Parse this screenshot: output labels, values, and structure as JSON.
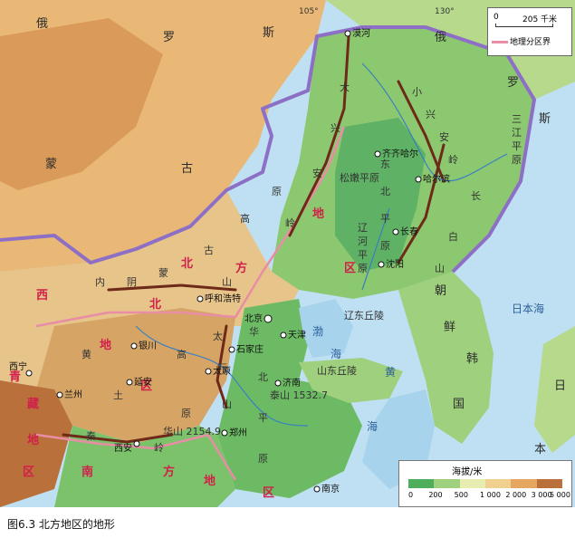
{
  "caption": "图6.3  北方地区的地形",
  "legend": {
    "scale_zero": "0",
    "scale_label": "205 千米",
    "boundary_label": "地理分区界",
    "boundary_color": "#e98ca6",
    "elevation_title": "海拔/米",
    "elevation_ticks": [
      "0",
      "200",
      "500",
      "1 000",
      "2 000",
      "3 000",
      "5 000"
    ],
    "elevation_colors": [
      "#4fae5c",
      "#9fd07e",
      "#e7ecb0",
      "#f1cf8f",
      "#e5a660",
      "#b9703a"
    ]
  },
  "longitude_labels": [
    "105°",
    "130°"
  ],
  "countries": {
    "russia": [
      "俄",
      "罗",
      "斯"
    ],
    "russia_ne": [
      "俄",
      "罗",
      "斯"
    ],
    "mongolia": [
      "蒙",
      "古"
    ],
    "north_korea": [
      "朝",
      "鲜"
    ],
    "south_korea": [
      "韩",
      "国"
    ],
    "japan": [
      "日"
    ],
    "japan2": [
      "本"
    ]
  },
  "seas": {
    "sea_of_japan": "日本海",
    "bohai": [
      "渤",
      "海"
    ],
    "yellow": [
      "黄",
      "海"
    ]
  },
  "regions": {
    "northern": [
      "北",
      "方",
      "地",
      "区"
    ],
    "northwest": [
      "西",
      "北",
      "地",
      "区"
    ],
    "tibet": [
      "青",
      "藏",
      "地",
      "区"
    ],
    "southern": [
      "南",
      "方",
      "地",
      "区"
    ]
  },
  "landforms": {
    "da_xinganling": [
      "大",
      "兴",
      "安",
      "岭"
    ],
    "xiao_xinganling": [
      "小",
      "兴",
      "安",
      "岭"
    ],
    "changbai": [
      "长",
      "白",
      "山"
    ],
    "dongbei_plain": [
      "东",
      "北",
      "平",
      "原"
    ],
    "songnen": "松嫩平原",
    "sanjiang": [
      "三",
      "江",
      "平",
      "原"
    ],
    "liaohe": [
      "辽",
      "河",
      "平",
      "原"
    ],
    "neimeng_plateau": [
      "内",
      "蒙",
      "古",
      "高",
      "原"
    ],
    "yinshan": [
      "阴",
      "山"
    ],
    "huangtu": [
      "黄",
      "土",
      "高",
      "原"
    ],
    "huabei": [
      "华",
      "北",
      "平",
      "原"
    ],
    "taihang": [
      "太",
      "行",
      "山"
    ],
    "qinling": [
      "秦",
      "岭"
    ],
    "shandong_hills": "山东丘陵",
    "liaodong_hills": "辽东丘陵",
    "taishan": "泰山 1532.7",
    "huashan": "华山 2154.9"
  },
  "cities": {
    "mohe": "漠河",
    "qiqihar": "齐齐哈尔",
    "harbin": "哈尔滨",
    "changchun": "长春",
    "shenyang": "沈阳",
    "huhhot": "呼和浩特",
    "beijing": "北京",
    "tianjin": "天津",
    "shijiazhuang": "石家庄",
    "taiyuan": "太原",
    "jinan": "济南",
    "zhengzhou": "郑州",
    "xian": "西安",
    "yinchuan": "银川",
    "lanzhou": "兰州",
    "xining": "西宁",
    "yanan": "延安",
    "nanjing": "南京"
  }
}
